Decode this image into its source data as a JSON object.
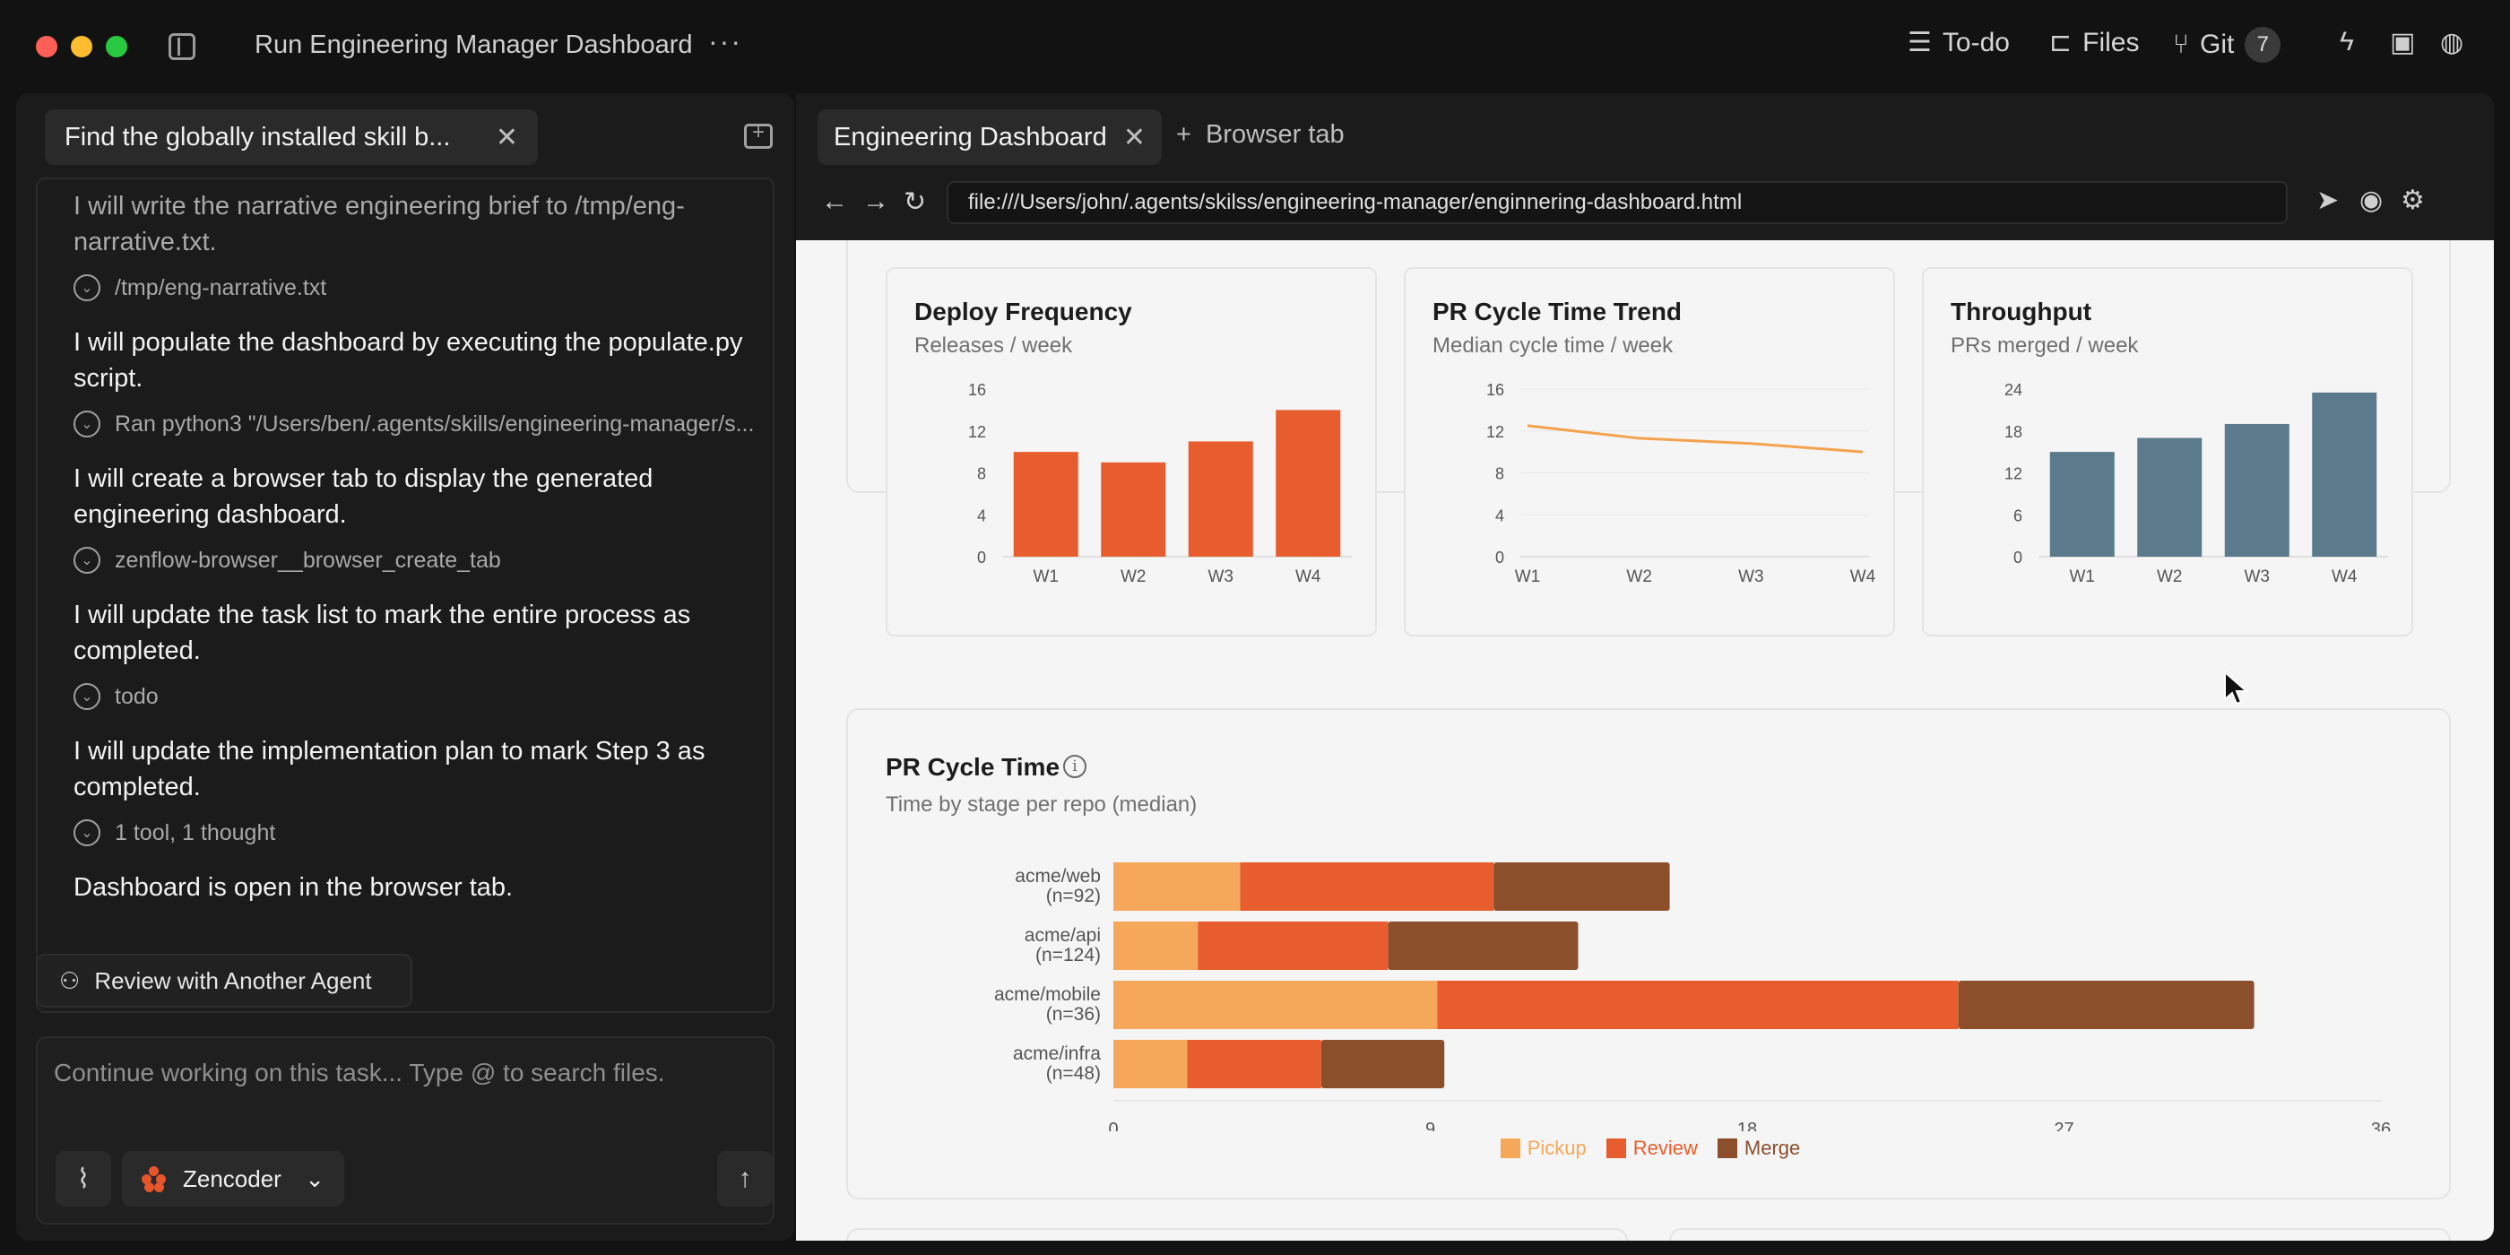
{
  "app": {
    "title": "Run Engineering Manager Dashboard",
    "more_icon": "ellipsis-icon",
    "toolbar": {
      "todo_label": "To-do",
      "files_label": "Files",
      "git_label": "Git",
      "git_count": "7"
    }
  },
  "left": {
    "task_tab_label": "Find the globally installed skill b...",
    "messages": [
      {
        "type": "text",
        "text": "I will write the narrative engineering brief to /tmp/eng-narrative.txt.",
        "faded": true
      },
      {
        "type": "tool",
        "text": "/tmp/eng-narrative.txt"
      },
      {
        "type": "text",
        "text": "I will populate the dashboard by executing the populate.py script."
      },
      {
        "type": "tool",
        "text": "Ran python3 \"/Users/ben/.agents/skills/engineering-manager/s..."
      },
      {
        "type": "text",
        "text": "I will create a browser tab to display the generated engineering dashboard."
      },
      {
        "type": "tool",
        "text": "zenflow-browser__browser_create_tab"
      },
      {
        "type": "text",
        "text": "I will update the task list to mark the entire process as completed."
      },
      {
        "type": "tool",
        "text": "todo"
      },
      {
        "type": "text",
        "text": "I will update the implementation plan to mark Step 3 as completed."
      },
      {
        "type": "tool",
        "text": "1 tool, 1 thought"
      },
      {
        "type": "text",
        "text": "Dashboard is open in the browser tab."
      }
    ],
    "review_button": "Review with Another Agent",
    "composer_placeholder": "Continue working on this task... Type @ to search files.",
    "model_name": "Zencoder"
  },
  "browser": {
    "active_tab": "Engineering Dashboard",
    "new_tab_label": "Browser tab",
    "url": "file:///Users/john/.agents/skilss/engineering-manager/enginnering-dashboard.html"
  },
  "chart_data": [
    {
      "type": "bar",
      "title": "Deploy Frequency",
      "subtitle": "Releases / week",
      "categories": [
        "W1",
        "W2",
        "W3",
        "W4"
      ],
      "values": [
        10,
        9,
        11,
        14
      ],
      "yticks": [
        0,
        4,
        8,
        12,
        16
      ],
      "ylim": [
        0,
        16
      ],
      "color": "#e85d2e"
    },
    {
      "type": "line",
      "title": "PR Cycle Time Trend",
      "subtitle": "Median cycle time / week",
      "categories": [
        "W1",
        "W2",
        "W3",
        "W4"
      ],
      "values": [
        12.5,
        11.3,
        10.8,
        10.0
      ],
      "yticks": [
        0,
        4,
        8,
        12,
        16
      ],
      "ylim": [
        0,
        16
      ],
      "color": "#f4a24e"
    },
    {
      "type": "bar",
      "title": "Throughput",
      "subtitle": "PRs merged / week",
      "categories": [
        "W1",
        "W2",
        "W3",
        "W4"
      ],
      "values": [
        15,
        17,
        19,
        23.5
      ],
      "yticks": [
        0,
        6,
        12,
        18,
        24
      ],
      "ylim": [
        0,
        24
      ],
      "color": "#5b7a8c"
    },
    {
      "type": "bar",
      "orientation": "horizontal-stacked",
      "title": "PR Cycle Time",
      "subtitle": "Time by stage per repo (median)",
      "categories": [
        "acme/web",
        "acme/api",
        "acme/mobile",
        "acme/infra"
      ],
      "counts": [
        "(n=92)",
        "(n=124)",
        "(n=36)",
        "(n=48)"
      ],
      "xticks": [
        0,
        9,
        18,
        27,
        36
      ],
      "xlim": [
        0,
        36
      ],
      "series": [
        {
          "name": "Pickup",
          "values": [
            3.6,
            2.4,
            9.2,
            2.1
          ],
          "color": "#f5a85a"
        },
        {
          "name": "Review",
          "values": [
            7.2,
            5.4,
            14.8,
            3.8
          ],
          "color": "#e85d2e"
        },
        {
          "name": "Merge",
          "values": [
            5.0,
            5.4,
            8.4,
            3.5
          ],
          "color": "#8b4f2c"
        }
      ]
    }
  ]
}
